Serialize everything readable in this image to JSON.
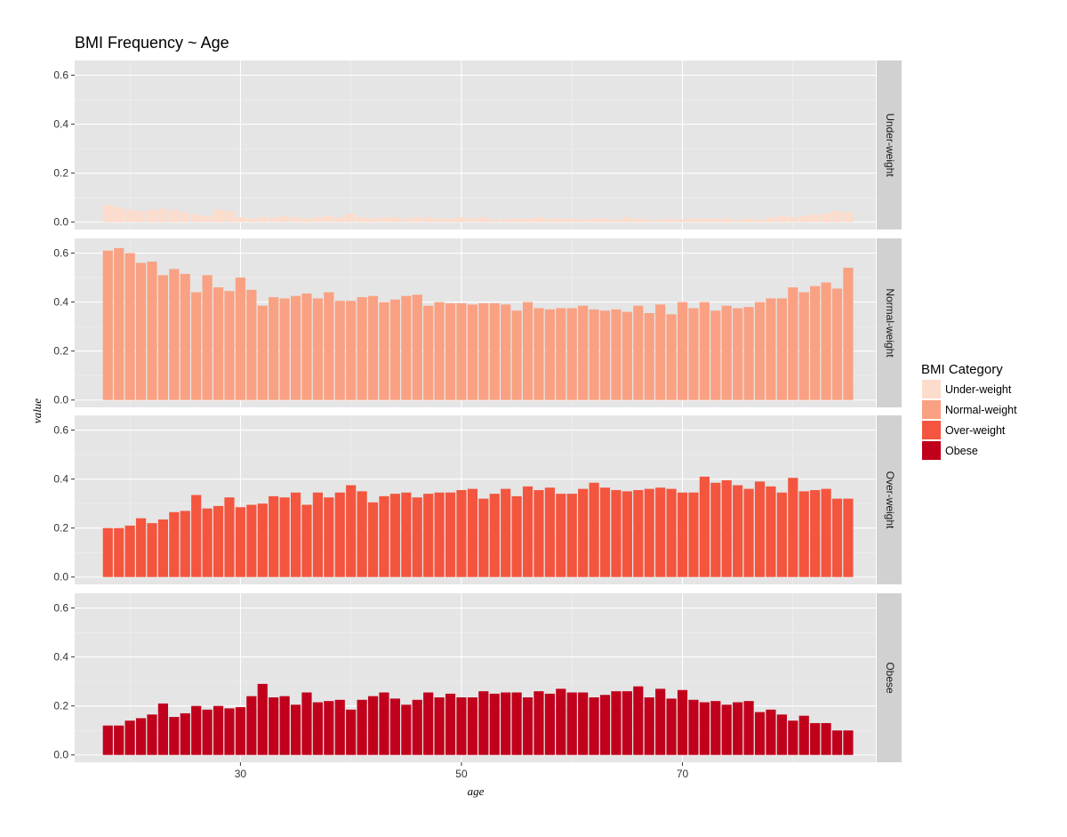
{
  "chart_data": {
    "type": "bar",
    "title": "BMI Frequency ~ Age",
    "xlabel": "age",
    "ylabel": "value",
    "xlim": [
      15,
      87.5
    ],
    "ylim": [
      -0.03,
      0.66
    ],
    "x_ticks": [
      30,
      50,
      70
    ],
    "y_ticks": [
      0.0,
      0.2,
      0.4,
      0.6
    ],
    "y_tick_labels": [
      "0.0",
      "0.2",
      "0.4",
      "0.6"
    ],
    "grid": true,
    "legend_position": "right",
    "legend_title": "BMI Category",
    "facets": [
      "Under-weight",
      "Normal-weight",
      "Over-weight",
      "Obese"
    ],
    "x": [
      18,
      19,
      20,
      21,
      22,
      23,
      24,
      25,
      26,
      27,
      28,
      29,
      30,
      31,
      32,
      33,
      34,
      35,
      36,
      37,
      38,
      39,
      40,
      41,
      42,
      43,
      44,
      45,
      46,
      47,
      48,
      49,
      50,
      51,
      52,
      53,
      54,
      55,
      56,
      57,
      58,
      59,
      60,
      61,
      62,
      63,
      64,
      65,
      66,
      67,
      68,
      69,
      70,
      71,
      72,
      73,
      74,
      75,
      76,
      77,
      78,
      79,
      80,
      81,
      82,
      83,
      84,
      85
    ],
    "series": [
      {
        "name": "Under-weight",
        "color": "#fcdccc",
        "values": [
          0.07,
          0.06,
          0.05,
          0.045,
          0.05,
          0.055,
          0.05,
          0.04,
          0.03,
          0.025,
          0.05,
          0.045,
          0.02,
          0.015,
          0.02,
          0.02,
          0.025,
          0.02,
          0.015,
          0.02,
          0.025,
          0.02,
          0.035,
          0.02,
          0.015,
          0.02,
          0.02,
          0.015,
          0.02,
          0.02,
          0.015,
          0.015,
          0.02,
          0.015,
          0.02,
          0.01,
          0.015,
          0.015,
          0.015,
          0.02,
          0.015,
          0.015,
          0.015,
          0.01,
          0.015,
          0.015,
          0.01,
          0.02,
          0.015,
          0.01,
          0.01,
          0.015,
          0.01,
          0.015,
          0.015,
          0.015,
          0.015,
          0.01,
          0.015,
          0.01,
          0.02,
          0.025,
          0.02,
          0.025,
          0.03,
          0.035,
          0.045,
          0.04
        ]
      },
      {
        "name": "Normal-weight",
        "color": "#f9a182",
        "values": [
          0.61,
          0.62,
          0.6,
          0.56,
          0.565,
          0.51,
          0.535,
          0.515,
          0.44,
          0.51,
          0.46,
          0.445,
          0.5,
          0.45,
          0.385,
          0.42,
          0.415,
          0.425,
          0.435,
          0.415,
          0.44,
          0.405,
          0.405,
          0.42,
          0.425,
          0.4,
          0.41,
          0.425,
          0.43,
          0.385,
          0.4,
          0.395,
          0.395,
          0.39,
          0.395,
          0.395,
          0.39,
          0.365,
          0.4,
          0.375,
          0.37,
          0.375,
          0.375,
          0.385,
          0.37,
          0.365,
          0.37,
          0.36,
          0.385,
          0.355,
          0.39,
          0.35,
          0.4,
          0.375,
          0.4,
          0.365,
          0.385,
          0.375,
          0.38,
          0.4,
          0.415,
          0.415,
          0.46,
          0.44,
          0.465,
          0.48,
          0.455,
          0.54
        ]
      },
      {
        "name": "Over-weight",
        "color": "#f4553e",
        "values": [
          0.2,
          0.2,
          0.21,
          0.24,
          0.22,
          0.235,
          0.265,
          0.27,
          0.335,
          0.28,
          0.29,
          0.325,
          0.285,
          0.295,
          0.3,
          0.33,
          0.325,
          0.345,
          0.295,
          0.345,
          0.325,
          0.345,
          0.375,
          0.35,
          0.305,
          0.33,
          0.34,
          0.345,
          0.325,
          0.34,
          0.345,
          0.345,
          0.355,
          0.36,
          0.32,
          0.34,
          0.36,
          0.33,
          0.37,
          0.355,
          0.365,
          0.34,
          0.34,
          0.36,
          0.385,
          0.365,
          0.355,
          0.35,
          0.355,
          0.36,
          0.365,
          0.36,
          0.345,
          0.345,
          0.41,
          0.385,
          0.395,
          0.375,
          0.36,
          0.39,
          0.37,
          0.345,
          0.405,
          0.35,
          0.355,
          0.36,
          0.32,
          0.32
        ]
      },
      {
        "name": "Obese",
        "color": "#c1001c",
        "values": [
          0.12,
          0.12,
          0.14,
          0.15,
          0.165,
          0.21,
          0.155,
          0.17,
          0.2,
          0.185,
          0.2,
          0.19,
          0.195,
          0.24,
          0.29,
          0.235,
          0.24,
          0.205,
          0.255,
          0.215,
          0.22,
          0.225,
          0.185,
          0.225,
          0.24,
          0.255,
          0.23,
          0.205,
          0.225,
          0.255,
          0.235,
          0.25,
          0.235,
          0.235,
          0.26,
          0.25,
          0.255,
          0.255,
          0.235,
          0.26,
          0.25,
          0.27,
          0.255,
          0.255,
          0.235,
          0.245,
          0.26,
          0.26,
          0.28,
          0.235,
          0.27,
          0.23,
          0.265,
          0.225,
          0.215,
          0.22,
          0.205,
          0.215,
          0.22,
          0.175,
          0.185,
          0.165,
          0.14,
          0.16,
          0.13,
          0.13,
          0.1,
          0.1
        ]
      }
    ]
  }
}
